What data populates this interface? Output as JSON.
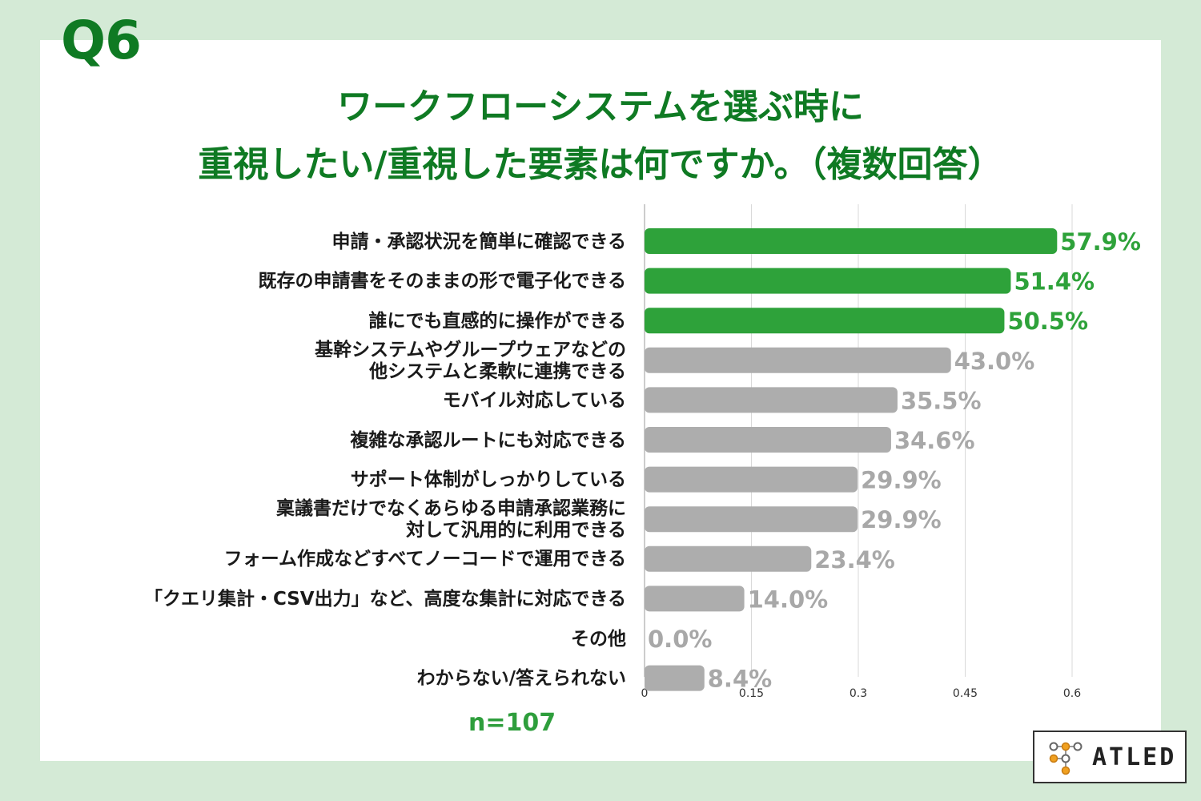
{
  "question_label": "Q6",
  "title_line1": "ワークフローシステムを選ぶ時に",
  "title_line2": "重視したい/重視した要素は何ですか。（複数回答）",
  "sample_size": "n=107",
  "logo_text": "ATLED",
  "colors": {
    "highlight": "#2ea23a",
    "normal": "#adadad",
    "title": "#0f7a23",
    "background": "#d4ead6"
  },
  "chart_data": {
    "type": "bar",
    "orientation": "horizontal",
    "categories": [
      [
        "申請・承認状況を簡単に確認できる"
      ],
      [
        "既存の申請書をそのままの形で電子化できる"
      ],
      [
        "誰にでも直感的に操作ができる"
      ],
      [
        "基幹システムやグループウェアなどの",
        "他システムと柔軟に連携できる"
      ],
      [
        "モバイル対応している"
      ],
      [
        "複雑な承認ルートにも対応できる"
      ],
      [
        "サポート体制がしっかりしている"
      ],
      [
        "稟議書だけでなくあらゆる申請承認業務に",
        "対して汎用的に利用できる"
      ],
      [
        "フォーム作成などすべてノーコードで運用できる"
      ],
      [
        "「クエリ集計・CSV出力」など、高度な集計に対応できる"
      ],
      [
        "その他"
      ],
      [
        "わからない/答えられない"
      ]
    ],
    "values": [
      0.579,
      0.514,
      0.505,
      0.43,
      0.355,
      0.346,
      0.299,
      0.299,
      0.234,
      0.14,
      0.0,
      0.084
    ],
    "value_labels": [
      "57.9%",
      "51.4%",
      "50.5%",
      "43.0%",
      "35.5%",
      "34.6%",
      "29.9%",
      "29.9%",
      "23.4%",
      "14.0%",
      "0.0%",
      "8.4%"
    ],
    "highlighted": [
      true,
      true,
      true,
      false,
      false,
      false,
      false,
      false,
      false,
      false,
      false,
      false
    ],
    "xlim": [
      0,
      0.6
    ],
    "x_ticks": [
      "0",
      "0.15",
      "0.3",
      "0.45",
      "0.6"
    ],
    "grid": true
  }
}
